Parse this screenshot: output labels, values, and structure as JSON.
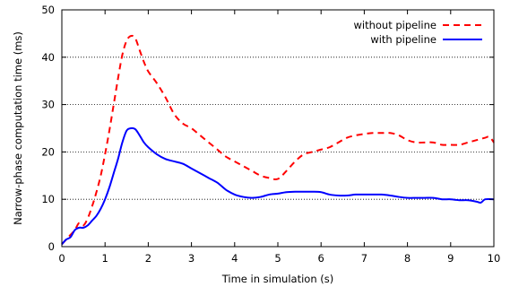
{
  "chart_data": {
    "type": "line",
    "title": "",
    "xlabel": "Time in simulation (s)",
    "ylabel": "Narrow-phase computation time (ms)",
    "xlim": [
      0,
      10
    ],
    "ylim": [
      0,
      50
    ],
    "xticks": [
      0,
      1,
      2,
      3,
      4,
      5,
      6,
      7,
      8,
      9,
      10
    ],
    "yticks": [
      0,
      10,
      20,
      30,
      40,
      50
    ],
    "grid": "horizontal dotted",
    "legend_position": "top-right",
    "series": [
      {
        "name": "without pipeline",
        "color": "#ff0000",
        "dash": "dashed",
        "x": [
          0,
          0.1,
          0.2,
          0.3,
          0.4,
          0.5,
          0.6,
          0.7,
          0.8,
          0.9,
          1.0,
          1.1,
          1.2,
          1.3,
          1.4,
          1.5,
          1.6,
          1.7,
          1.8,
          1.9,
          2.0,
          2.2,
          2.4,
          2.6,
          2.8,
          3.0,
          3.2,
          3.4,
          3.6,
          3.8,
          4.0,
          4.2,
          4.4,
          4.6,
          4.8,
          5.0,
          5.2,
          5.4,
          5.6,
          5.8,
          6.0,
          6.2,
          6.4,
          6.6,
          6.8,
          7.0,
          7.2,
          7.4,
          7.6,
          7.8,
          8.0,
          8.2,
          8.4,
          8.6,
          8.8,
          9.0,
          9.2,
          9.4,
          9.6,
          9.8,
          9.9,
          10.0
        ],
        "values": [
          0.5,
          1.5,
          2.5,
          3.5,
          5.0,
          4.5,
          6.0,
          8.5,
          11.5,
          15.0,
          19.5,
          24.5,
          30.0,
          35.5,
          40.5,
          43.5,
          44.5,
          44.0,
          41.5,
          39.0,
          37.0,
          34.5,
          31.5,
          28.0,
          26.0,
          25.0,
          23.5,
          22.0,
          20.5,
          19.0,
          18.0,
          17.0,
          16.0,
          15.0,
          14.5,
          14.3,
          16.0,
          18.0,
          19.5,
          20.0,
          20.5,
          21.0,
          22.0,
          23.0,
          23.5,
          23.8,
          24.0,
          24.0,
          24.0,
          23.5,
          22.5,
          22.0,
          22.0,
          22.0,
          21.5,
          21.5,
          21.5,
          22.0,
          22.5,
          23.0,
          23.2,
          22.0
        ]
      },
      {
        "name": "with pipeline",
        "color": "#0000ff",
        "dash": "solid",
        "x": [
          0,
          0.1,
          0.2,
          0.3,
          0.4,
          0.5,
          0.6,
          0.7,
          0.8,
          0.9,
          1.0,
          1.1,
          1.2,
          1.3,
          1.4,
          1.5,
          1.6,
          1.7,
          1.8,
          1.9,
          2.0,
          2.2,
          2.4,
          2.6,
          2.8,
          3.0,
          3.2,
          3.4,
          3.6,
          3.8,
          4.0,
          4.2,
          4.4,
          4.6,
          4.8,
          5.0,
          5.2,
          5.4,
          5.6,
          5.8,
          6.0,
          6.2,
          6.4,
          6.6,
          6.8,
          7.0,
          7.2,
          7.4,
          7.6,
          7.8,
          8.0,
          8.2,
          8.4,
          8.6,
          8.8,
          9.0,
          9.2,
          9.4,
          9.6,
          9.7,
          9.8,
          10.0
        ],
        "values": [
          0.5,
          1.5,
          2.0,
          3.5,
          4.0,
          4.0,
          4.5,
          5.5,
          6.5,
          8.0,
          10.0,
          12.5,
          15.5,
          18.5,
          22.0,
          24.5,
          25.0,
          24.8,
          23.5,
          22.0,
          21.0,
          19.5,
          18.5,
          18.0,
          17.5,
          16.5,
          15.5,
          14.5,
          13.5,
          12.0,
          11.0,
          10.5,
          10.3,
          10.5,
          11.0,
          11.2,
          11.5,
          11.6,
          11.6,
          11.6,
          11.5,
          11.0,
          10.8,
          10.8,
          11.0,
          11.0,
          11.0,
          11.0,
          10.8,
          10.5,
          10.3,
          10.3,
          10.3,
          10.3,
          10.0,
          10.0,
          9.8,
          9.8,
          9.5,
          9.3,
          10.0,
          10.0
        ]
      }
    ]
  }
}
